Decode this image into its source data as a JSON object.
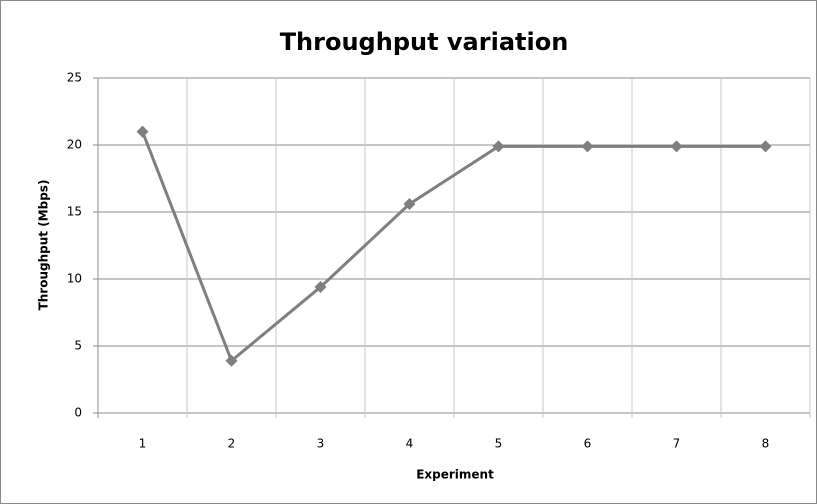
{
  "chart_data": {
    "type": "line",
    "title": "Throughput variation",
    "x_label": "Experiment",
    "y_label": "Throughput (Mbps)",
    "categories": [
      "1",
      "2",
      "3",
      "4",
      "5",
      "6",
      "7",
      "8"
    ],
    "series": [
      {
        "name": "Throughput",
        "color": "#7f7f7f",
        "values": [
          21,
          3.9,
          9.4,
          15.6,
          19.9,
          19.9,
          19.9,
          19.9
        ]
      }
    ],
    "ylim": [
      0,
      25
    ],
    "yticks": [
      0,
      5,
      10,
      15,
      20,
      25
    ],
    "grid": true
  }
}
